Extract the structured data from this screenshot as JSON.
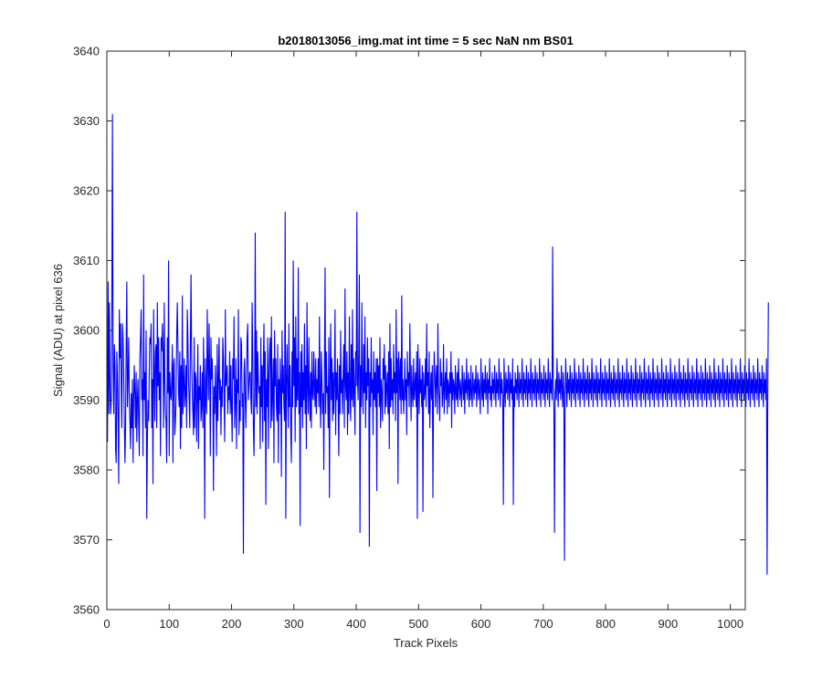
{
  "chart_data": {
    "type": "line",
    "title": "b2018013056_img.mat int time = 5 sec  NaN nm BS01",
    "xlabel": "Track Pixels",
    "ylabel": "Signal (ADU) at pixel 636",
    "xlim": [
      0,
      1024
    ],
    "ylim": [
      3560,
      3640
    ],
    "xticks": [
      0,
      100,
      200,
      300,
      400,
      500,
      600,
      700,
      800,
      900,
      1000
    ],
    "yticks": [
      3560,
      3570,
      3580,
      3590,
      3600,
      3610,
      3620,
      3630,
      3640
    ],
    "grid": false,
    "box": true,
    "series": [
      {
        "color": "#0000ff",
        "x_start": 1,
        "x_step": 1,
        "values": [
          3584,
          3607,
          3588,
          3604,
          3592,
          3588,
          3590,
          3604,
          3631,
          3595,
          3588,
          3598,
          3595,
          3583,
          3581,
          3597,
          3593,
          3587,
          3578,
          3603,
          3596,
          3601,
          3592,
          3586,
          3601,
          3599,
          3594,
          3587,
          3581,
          3586,
          3598,
          3607,
          3589,
          3593,
          3599,
          3590,
          3587,
          3583,
          3591,
          3586,
          3593,
          3581,
          3590,
          3595,
          3591,
          3586,
          3594,
          3584,
          3590,
          3593,
          3587,
          3582,
          3596,
          3599,
          3603,
          3590,
          3593,
          3582,
          3608,
          3590,
          3594,
          3586,
          3600,
          3573,
          3584,
          3590,
          3587,
          3594,
          3599,
          3598,
          3601,
          3586,
          3593,
          3578,
          3603,
          3594,
          3587,
          3597,
          3598,
          3586,
          3604,
          3592,
          3599,
          3590,
          3594,
          3582,
          3599,
          3597,
          3601,
          3597,
          3586,
          3604,
          3593,
          3588,
          3587,
          3581,
          3599,
          3591,
          3610,
          3582,
          3594,
          3591,
          3590,
          3593,
          3598,
          3581,
          3595,
          3596,
          3585,
          3587,
          3590,
          3599,
          3604,
          3598,
          3591,
          3589,
          3597,
          3583,
          3595,
          3586,
          3605,
          3588,
          3592,
          3596,
          3589,
          3591,
          3595,
          3586,
          3603,
          3599,
          3593,
          3590,
          3586,
          3598,
          3608,
          3596,
          3591,
          3588,
          3585,
          3599,
          3586,
          3594,
          3593,
          3584,
          3591,
          3598,
          3583,
          3592,
          3590,
          3595,
          3587,
          3589,
          3594,
          3586,
          3599,
          3591,
          3573,
          3596,
          3591,
          3588,
          3603,
          3595,
          3590,
          3601,
          3594,
          3582,
          3599,
          3593,
          3596,
          3591,
          3577,
          3592,
          3588,
          3595,
          3590,
          3582,
          3598,
          3587,
          3593,
          3599,
          3590,
          3593,
          3585,
          3592,
          3589,
          3599,
          3596,
          3590,
          3584,
          3603,
          3592,
          3593,
          3595,
          3588,
          3592,
          3590,
          3597,
          3588,
          3595,
          3589,
          3584,
          3596,
          3593,
          3602,
          3586,
          3590,
          3596,
          3583,
          3593,
          3591,
          3603,
          3585,
          3590,
          3587,
          3599,
          3598,
          3589,
          3591,
          3568,
          3594,
          3596,
          3590,
          3586,
          3593,
          3599,
          3601,
          3590,
          3592,
          3594,
          3594,
          3590,
          3588,
          3604,
          3597,
          3586,
          3582,
          3591,
          3614,
          3589,
          3600,
          3588,
          3597,
          3593,
          3591,
          3592,
          3583,
          3599,
          3589,
          3595,
          3584,
          3595,
          3601,
          3587,
          3597,
          3575,
          3593,
          3589,
          3599,
          3583,
          3593,
          3597,
          3599,
          3586,
          3602,
          3587,
          3591,
          3596,
          3581,
          3600,
          3592,
          3596,
          3589,
          3587,
          3598,
          3581,
          3593,
          3588,
          3596,
          3592,
          3579,
          3600,
          3591,
          3595,
          3589,
          3587,
          3617,
          3573,
          3592,
          3598,
          3591,
          3586,
          3601,
          3589,
          3595,
          3585,
          3581,
          3597,
          3589,
          3610,
          3592,
          3599,
          3584,
          3602,
          3589,
          3596,
          3590,
          3609,
          3588,
          3594,
          3572,
          3597,
          3589,
          3598,
          3586,
          3594,
          3590,
          3601,
          3588,
          3595,
          3583,
          3604,
          3592,
          3588,
          3599,
          3591,
          3587,
          3594,
          3586,
          3597,
          3591,
          3590,
          3597,
          3592,
          3589,
          3596,
          3588,
          3593,
          3591,
          3596,
          3589,
          3602,
          3590,
          3586,
          3597,
          3593,
          3588,
          3591,
          3580,
          3594,
          3609,
          3588,
          3597,
          3591,
          3592,
          3586,
          3599,
          3576,
          3593,
          3601,
          3590,
          3596,
          3587,
          3594,
          3588,
          3593,
          3603,
          3585,
          3594,
          3590,
          3596,
          3590,
          3582,
          3595,
          3588,
          3600,
          3591,
          3593,
          3588,
          3594,
          3598,
          3586,
          3606,
          3592,
          3590,
          3597,
          3585,
          3594,
          3588,
          3602,
          3591,
          3587,
          3598,
          3590,
          3603,
          3589,
          3596,
          3591,
          3585,
          3597,
          3592,
          3617,
          3593,
          3590,
          3597,
          3608,
          3571,
          3595,
          3589,
          3604,
          3592,
          3588,
          3598,
          3591,
          3602,
          3586,
          3594,
          3590,
          3599,
          3592,
          3596,
          3569,
          3594,
          3589,
          3599,
          3591,
          3593,
          3585,
          3597,
          3590,
          3594,
          3589,
          3596,
          3577,
          3596,
          3591,
          3595,
          3589,
          3599,
          3586,
          3593,
          3591,
          3587,
          3596,
          3593,
          3598,
          3588,
          3595,
          3589,
          3592,
          3594,
          3588,
          3597,
          3583,
          3601,
          3589,
          3596,
          3590,
          3593,
          3588,
          3598,
          3591,
          3594,
          3587,
          3603,
          3591,
          3596,
          3578,
          3597,
          3594,
          3590,
          3596,
          3588,
          3605,
          3590,
          3593,
          3588,
          3591,
          3596,
          3590,
          3593,
          3585,
          3597,
          3592,
          3594,
          3589,
          3601,
          3593,
          3587,
          3595,
          3591,
          3589,
          3596,
          3590,
          3592,
          3594,
          3589,
          3597,
          3573,
          3598,
          3592,
          3588,
          3596,
          3591,
          3593,
          3589,
          3595,
          3574,
          3594,
          3590,
          3591,
          3596,
          3589,
          3601,
          3592,
          3594,
          3588,
          3597,
          3586,
          3591,
          3594,
          3590,
          3595,
          3576,
          3591,
          3597,
          3594,
          3589,
          3593,
          3595,
          3588,
          3601,
          3592,
          3590,
          3587,
          3596,
          3592,
          3594,
          3589,
          3591,
          3598,
          3588,
          3592,
          3594,
          3590,
          3596,
          3588,
          3593,
          3592,
          3589,
          3594,
          3591,
          3597,
          3586,
          3594,
          3590,
          3593,
          3592,
          3588,
          3595,
          3591,
          3590,
          3594,
          3589,
          3596,
          3592,
          3590,
          3593,
          3591,
          3589,
          3595,
          3592,
          3590,
          3594,
          3588,
          3593,
          3591,
          3596,
          3590,
          3592,
          3594,
          3589,
          3593,
          3590,
          3595,
          3591,
          3589,
          3594,
          3592,
          3590,
          3593,
          3591,
          3595,
          3589,
          3592,
          3594,
          3590,
          3593,
          3591,
          3588,
          3596,
          3592,
          3590,
          3594,
          3589,
          3593,
          3591,
          3595,
          3590,
          3592,
          3594,
          3588,
          3593,
          3591,
          3596,
          3590,
          3592,
          3589,
          3594,
          3591,
          3593,
          3590,
          3595,
          3592,
          3589,
          3594,
          3591,
          3593,
          3590,
          3596,
          3592,
          3589,
          3594,
          3591,
          3593,
          3590,
          3575,
          3596,
          3592,
          3589,
          3594,
          3591,
          3593,
          3590,
          3595,
          3592,
          3589,
          3594,
          3591,
          3593,
          3590,
          3596,
          3575,
          3592,
          3589,
          3594,
          3591,
          3593,
          3590,
          3595,
          3592,
          3589,
          3594,
          3591,
          3593,
          3590,
          3596,
          3592,
          3589,
          3594,
          3591,
          3593,
          3590,
          3595,
          3592,
          3589,
          3594,
          3591,
          3593,
          3590,
          3596,
          3592,
          3589,
          3594,
          3591,
          3593,
          3590,
          3595,
          3592,
          3589,
          3594,
          3591,
          3593,
          3590,
          3596,
          3592,
          3589,
          3594,
          3591,
          3593,
          3590,
          3595,
          3592,
          3589,
          3594,
          3591,
          3593,
          3590,
          3596,
          3592,
          3589,
          3594,
          3591,
          3593,
          3590,
          3612,
          3592,
          3589,
          3571,
          3591,
          3593,
          3590,
          3596,
          3592,
          3589,
          3594,
          3591,
          3593,
          3590,
          3595,
          3592,
          3589,
          3594,
          3591,
          3567,
          3590,
          3596,
          3592,
          3589,
          3594,
          3591,
          3593,
          3590,
          3595,
          3592,
          3589,
          3594,
          3591,
          3593,
          3590,
          3596,
          3592,
          3589,
          3594,
          3591,
          3593,
          3590,
          3595,
          3592,
          3589,
          3594,
          3591,
          3593,
          3590,
          3596,
          3592,
          3589,
          3594,
          3591,
          3593,
          3590,
          3595,
          3592,
          3589,
          3594,
          3591,
          3593,
          3590,
          3596,
          3592,
          3589,
          3594,
          3591,
          3593,
          3590,
          3595,
          3592,
          3589,
          3594,
          3591,
          3593,
          3590,
          3596,
          3592,
          3589,
          3594,
          3591,
          3593,
          3590,
          3595,
          3592,
          3589,
          3594,
          3591,
          3593,
          3590,
          3596,
          3592,
          3589,
          3594,
          3591,
          3593,
          3590,
          3595,
          3592,
          3589,
          3594,
          3591,
          3593,
          3590,
          3596,
          3592,
          3589,
          3594,
          3591,
          3593,
          3590,
          3595,
          3592,
          3589,
          3594,
          3591,
          3593,
          3590,
          3596,
          3592,
          3589,
          3594,
          3591,
          3593,
          3590,
          3595,
          3592,
          3589,
          3594,
          3591,
          3593,
          3590,
          3596,
          3592,
          3589,
          3594,
          3591,
          3593,
          3590,
          3595,
          3592,
          3589,
          3594,
          3591,
          3593,
          3590,
          3596,
          3592,
          3589,
          3594,
          3591,
          3593,
          3590,
          3595,
          3592,
          3589,
          3594,
          3591,
          3593,
          3590,
          3596,
          3592,
          3589,
          3594,
          3591,
          3593,
          3590,
          3595,
          3592,
          3589,
          3594,
          3591,
          3593,
          3590,
          3596,
          3592,
          3589,
          3594,
          3591,
          3593,
          3590,
          3595,
          3592,
          3589,
          3594,
          3591,
          3593,
          3590,
          3596,
          3592,
          3589,
          3594,
          3591,
          3593,
          3590,
          3595,
          3592,
          3589,
          3594,
          3591,
          3593,
          3590,
          3596,
          3592,
          3589,
          3594,
          3591,
          3593,
          3590,
          3595,
          3592,
          3589,
          3594,
          3591,
          3593,
          3590,
          3596,
          3592,
          3589,
          3594,
          3591,
          3593,
          3590,
          3595,
          3592,
          3589,
          3594,
          3591,
          3593,
          3590,
          3596,
          3592,
          3589,
          3594,
          3591,
          3593,
          3590,
          3595,
          3592,
          3589,
          3594,
          3591,
          3593,
          3590,
          3596,
          3592,
          3589,
          3594,
          3591,
          3593,
          3590,
          3595,
          3592,
          3589,
          3594,
          3591,
          3593,
          3590,
          3596,
          3592,
          3589,
          3594,
          3591,
          3593,
          3590,
          3595,
          3592,
          3589,
          3594,
          3591,
          3593,
          3590,
          3596,
          3592,
          3589,
          3594,
          3591,
          3593,
          3590,
          3595,
          3592,
          3589,
          3594,
          3591,
          3593,
          3590,
          3596,
          3592,
          3589,
          3594,
          3591,
          3593,
          3590,
          3595,
          3592,
          3589,
          3594,
          3591,
          3593,
          3590,
          3596,
          3592,
          3589,
          3594,
          3591,
          3593,
          3590,
          3595,
          3592,
          3589,
          3594,
          3591,
          3593,
          3590,
          3596,
          3592,
          3589,
          3594,
          3591,
          3593,
          3590,
          3595,
          3592,
          3589,
          3594,
          3591,
          3593,
          3590,
          3596,
          3592,
          3589,
          3594,
          3591,
          3593,
          3590,
          3595,
          3592,
          3589,
          3594,
          3591,
          3593,
          3590,
          3596,
          3565,
          3589,
          3604
        ]
      }
    ]
  }
}
